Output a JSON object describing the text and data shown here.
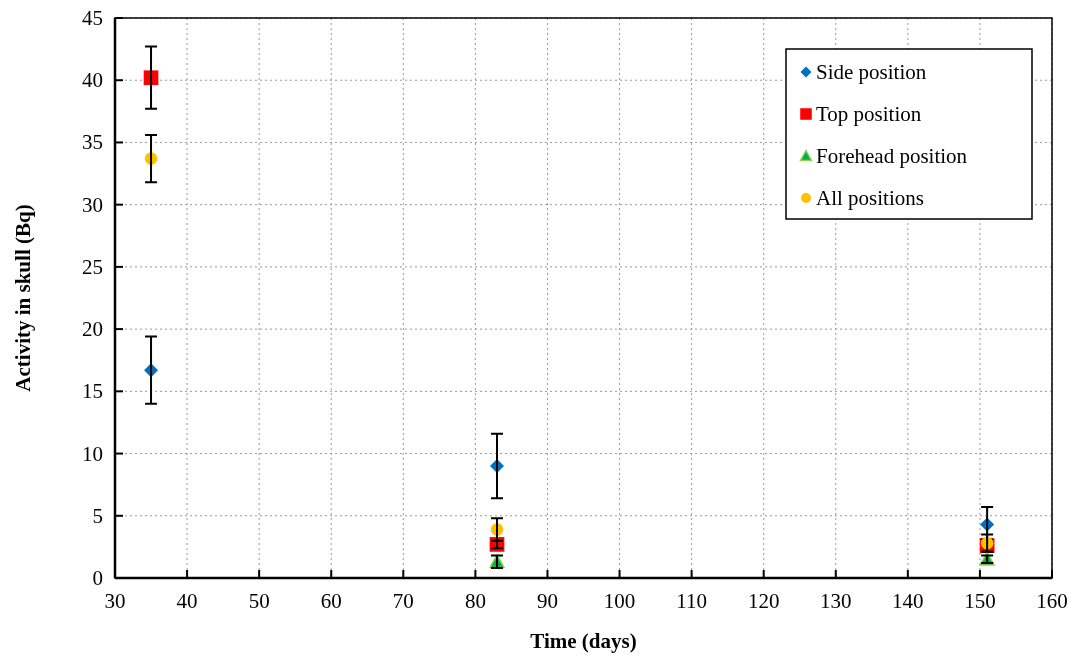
{
  "chart_data": {
    "type": "scatter",
    "xlabel": "Time (days)",
    "ylabel": "Activity in skull (Bq)",
    "xlim": [
      30,
      160
    ],
    "xticks": [
      30,
      40,
      50,
      60,
      70,
      80,
      90,
      100,
      110,
      120,
      130,
      140,
      150,
      160
    ],
    "ylim": [
      0,
      45
    ],
    "yticks": [
      0,
      5,
      10,
      15,
      20,
      25,
      30,
      35,
      40,
      45
    ],
    "grid": true,
    "legend": "top right",
    "series": [
      {
        "name": "Side position",
        "color": "#0070c0",
        "marker": "diamond",
        "x": [
          35,
          83,
          151
        ],
        "values": [
          16.7,
          9.0,
          4.3
        ],
        "errors": [
          2.7,
          2.6,
          1.4
        ]
      },
      {
        "name": "Top position",
        "color": "#ff0000",
        "marker": "square",
        "x": [
          35,
          83,
          151
        ],
        "values": [
          40.2,
          2.7,
          2.6
        ],
        "errors": [
          2.5,
          0.3,
          0.5
        ]
      },
      {
        "name": "Forehead position",
        "color": "#00b050",
        "marker": "triangle",
        "x": [
          83,
          151
        ],
        "values": [
          1.3,
          1.5
        ],
        "errors": [
          0.5,
          0.3
        ]
      },
      {
        "name": "All positions",
        "color": "#ffc000",
        "marker": "circle",
        "x": [
          35,
          83,
          151
        ],
        "values": [
          33.7,
          3.9,
          2.8
        ],
        "errors": [
          1.9,
          0.9,
          0.7
        ]
      }
    ]
  }
}
